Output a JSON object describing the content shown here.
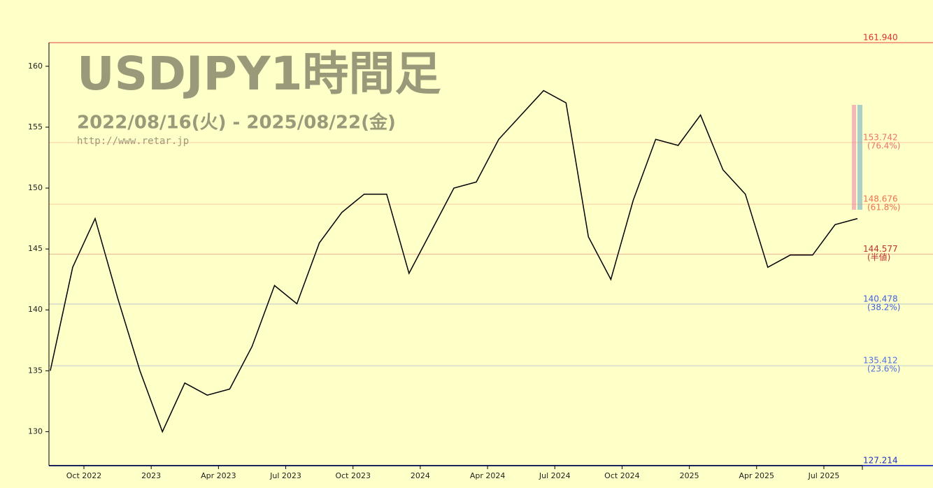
{
  "chart_data": {
    "type": "line",
    "title": "USDJPY1時間足",
    "subtitle": "2022/08/16(火) - 2025/08/22(金)",
    "source": "http://www.retar.jp",
    "x": [
      "2022-08",
      "2022-09",
      "2022-10",
      "2022-11",
      "2022-12",
      "2023-01",
      "2023-02",
      "2023-03",
      "2023-04",
      "2023-05",
      "2023-06",
      "2023-07",
      "2023-08",
      "2023-09",
      "2023-10",
      "2023-11",
      "2023-12",
      "2024-01",
      "2024-02",
      "2024-03",
      "2024-04",
      "2024-05",
      "2024-06",
      "2024-07",
      "2024-08",
      "2024-09",
      "2024-10",
      "2024-11",
      "2024-12",
      "2025-01",
      "2025-02",
      "2025-03",
      "2025-04",
      "2025-05",
      "2025-06",
      "2025-07",
      "2025-08"
    ],
    "values": [
      135,
      143.5,
      147.5,
      141,
      135,
      130,
      134,
      133,
      133.5,
      137,
      142,
      140.5,
      145.5,
      148,
      149.5,
      149.5,
      143,
      146.5,
      150,
      150.5,
      154,
      156,
      158,
      157,
      146,
      142.5,
      149,
      154,
      153.5,
      156,
      151.5,
      149.5,
      143.5,
      144.5,
      144.5,
      147,
      147.5
    ],
    "color": "#000000",
    "ylim": [
      127.214,
      161.94
    ],
    "yticks": [
      130,
      135,
      140,
      145,
      150,
      155,
      160
    ],
    "xticks": [
      {
        "value": "2022-10",
        "label": "Oct 2022"
      },
      {
        "value": "2023-01",
        "label": "2023"
      },
      {
        "value": "2023-04",
        "label": "Apr 2023"
      },
      {
        "value": "2023-07",
        "label": "Jul 2023"
      },
      {
        "value": "2023-10",
        "label": "Oct 2023"
      },
      {
        "value": "2024-01",
        "label": "2024"
      },
      {
        "value": "2024-04",
        "label": "Apr 2024"
      },
      {
        "value": "2024-07",
        "label": "Jul 2024"
      },
      {
        "value": "2024-10",
        "label": "Oct 2024"
      },
      {
        "value": "2025-01",
        "label": "2025"
      },
      {
        "value": "2025-04",
        "label": "Apr 2025"
      },
      {
        "value": "2025-07",
        "label": "Jul 2025"
      }
    ],
    "levels": [
      {
        "value": 161.94,
        "label": "161.940",
        "color": "#e03030"
      },
      {
        "value": 153.742,
        "label": "153.742",
        "note": "(76.4%)",
        "color": "#f07070"
      },
      {
        "value": 148.676,
        "label": "148.676",
        "note": "(61.8%)",
        "color": "#f07050"
      },
      {
        "value": 144.577,
        "label": "144.577",
        "note": "(半値)",
        "color": "#c03030"
      },
      {
        "value": 140.478,
        "label": "140.478",
        "note": "(38.2%)",
        "color": "#4060e0"
      },
      {
        "value": 135.412,
        "label": "135.412",
        "note": "(23.6%)",
        "color": "#5070e0"
      },
      {
        "value": 127.214,
        "label": "127.214",
        "color": "#2030c0"
      }
    ]
  }
}
